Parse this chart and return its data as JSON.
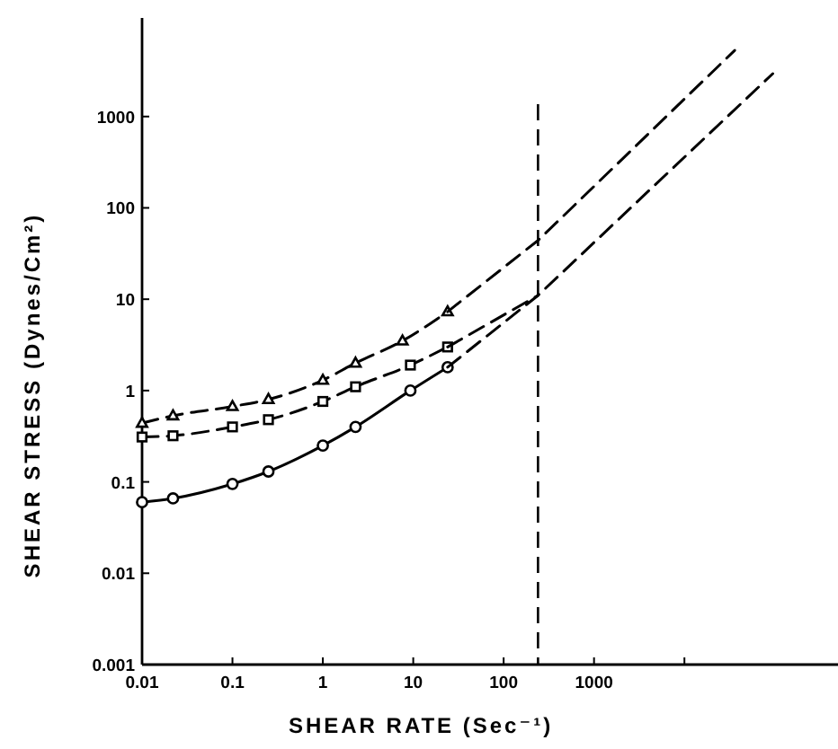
{
  "chart_data": {
    "type": "line",
    "xlabel": "SHEAR RATE (Sec⁻¹)",
    "ylabel": "SHEAR STRESS (Dynes/Cm²)",
    "log": "xy",
    "grid": false,
    "xlim": [
      0.01,
      500000
    ],
    "xticks": [
      0.01,
      0.1,
      1,
      10,
      100,
      1000,
      {
        "value": 10000,
        "label": null
      }
    ],
    "ylim": [
      0.001,
      12000
    ],
    "yticks": [
      0.001,
      0.01,
      0.1,
      1,
      10,
      100,
      1000
    ],
    "ref_lines": [
      {
        "axis": "x",
        "value": 240,
        "line_style": "dashed",
        "color": "#000000"
      }
    ],
    "series": [
      {
        "color": "#000000",
        "marker": "circle",
        "line_style": "solid",
        "x": [
          0.01,
          0.022,
          0.1,
          0.25,
          1,
          2.3,
          9.3,
          24
        ],
        "values": [
          0.06,
          0.066,
          0.095,
          0.13,
          0.25,
          0.4,
          1.0,
          1.8
        ]
      },
      {
        "color": "#000000",
        "marker": "square",
        "line_style": "dashed",
        "x": [
          0.01,
          0.022,
          0.1,
          0.25,
          1,
          2.3,
          9.3,
          24
        ],
        "values": [
          0.31,
          0.32,
          0.4,
          0.48,
          0.76,
          1.1,
          1.9,
          3.0
        ]
      },
      {
        "color": "#000000",
        "marker": "triangle",
        "line_style": "dashed",
        "x": [
          0.01,
          0.022,
          0.1,
          0.25,
          1,
          2.3,
          7.6,
          24
        ],
        "values": [
          0.44,
          0.53,
          0.67,
          0.8,
          1.3,
          2.0,
          3.5,
          7.3
        ]
      },
      {
        "color": "#000000",
        "marker": "none",
        "line_style": "dashed",
        "x": [
          24,
          240,
          95000
        ],
        "values": [
          1.8,
          11,
          2950
        ]
      },
      {
        "color": "#000000",
        "marker": "none",
        "line_style": "dashed",
        "x": [
          24,
          240
        ],
        "values": [
          3.0,
          11
        ]
      },
      {
        "color": "#000000",
        "marker": "none",
        "line_style": "dashed",
        "x": [
          24,
          240,
          36000
        ],
        "values": [
          7.3,
          44,
          5300
        ]
      }
    ]
  }
}
